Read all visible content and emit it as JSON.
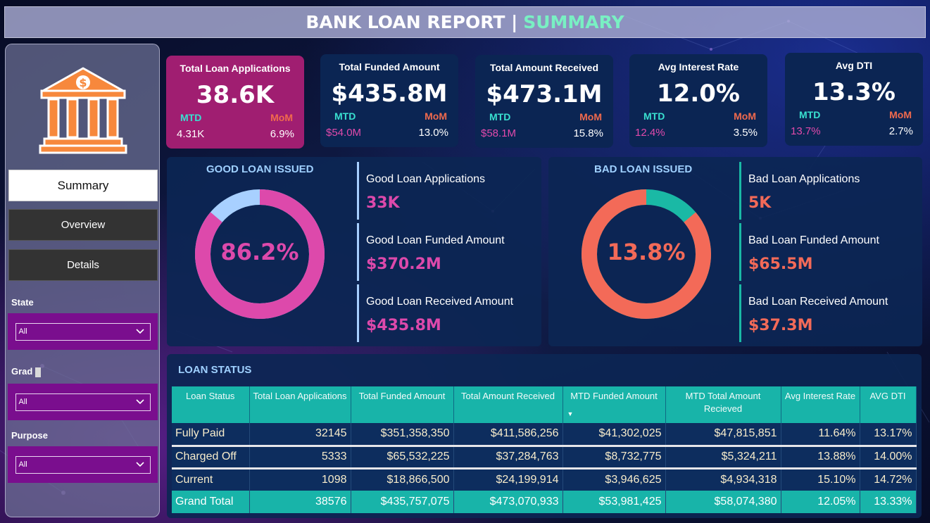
{
  "header": {
    "title_main": "BANK LOAN REPORT |",
    "title_accent": "SUMMARY"
  },
  "sidebar": {
    "icon": "bank-dollar-icon",
    "nav": [
      {
        "label": "Summary",
        "active": true
      },
      {
        "label": "Overview",
        "active": false
      },
      {
        "label": "Details",
        "active": false
      }
    ],
    "filters": [
      {
        "label": "State",
        "value": "All"
      },
      {
        "label": "Grad",
        "value": "All"
      },
      {
        "label": "Purpose",
        "value": "All"
      }
    ]
  },
  "kpis": [
    {
      "title": "Total Loan Applications",
      "value": "38.6K",
      "mtd_label": "MTD",
      "mom_label": "MoM",
      "mtd": "4.31K",
      "mom": "6.9%"
    },
    {
      "title": "Total Funded Amount",
      "value": "$435.8M",
      "mtd_label": "MTD",
      "mom_label": "MoM",
      "mtd": "$54.0M",
      "mom": "13.0%"
    },
    {
      "title": "Total Amount Received",
      "value": "$473.1M",
      "mtd_label": "MTD",
      "mom_label": "MoM",
      "mtd": "$58.1M",
      "mom": "15.8%"
    },
    {
      "title": "Avg Interest Rate",
      "value": "12.0%",
      "mtd_label": "MTD",
      "mom_label": "MoM",
      "mtd": "12.4%",
      "mom": "3.5%"
    },
    {
      "title": "Avg DTI",
      "value": "13.3%",
      "mtd_label": "MTD",
      "mom_label": "MoM",
      "mtd": "13.7%",
      "mom": "2.7%"
    }
  ],
  "good_loan": {
    "title": "GOOD LOAN ISSUED",
    "percent_label": "86.2%",
    "percent": 86.2,
    "metrics": [
      {
        "label": "Good Loan Applications",
        "value": "33K"
      },
      {
        "label": "Good Loan Funded Amount",
        "value": "$370.2M"
      },
      {
        "label": "Good Loan Received Amount",
        "value": "$435.8M"
      }
    ]
  },
  "bad_loan": {
    "title": "BAD LOAN ISSUED",
    "percent_label": "13.8%",
    "percent": 13.8,
    "metrics": [
      {
        "label": "Bad Loan Applications",
        "value": "5K"
      },
      {
        "label": "Bad Loan Funded Amount",
        "value": "$65.5M"
      },
      {
        "label": "Bad Loan Received Amount",
        "value": "$37.3M"
      }
    ]
  },
  "loan_status": {
    "title": "LOAN STATUS",
    "columns": [
      "Loan Status",
      "Total Loan Applications",
      "Total Funded Amount",
      "Total Amount Received",
      "MTD Funded Amount",
      "MTD Total Amount Recieved",
      "Avg Interest Rate",
      "AVG DTI"
    ],
    "rows": [
      [
        "Fully Paid",
        "32145",
        "$351,358,350",
        "$411,586,256",
        "$41,302,025",
        "$47,815,851",
        "11.64%",
        "13.17%"
      ],
      [
        "Charged Off",
        "5333",
        "$65,532,225",
        "$37,284,763",
        "$8,732,775",
        "$5,324,211",
        "13.88%",
        "14.00%"
      ],
      [
        "Current",
        "1098",
        "$18,866,500",
        "$24,199,914",
        "$3,946,625",
        "$4,934,318",
        "15.10%",
        "14.72%"
      ]
    ],
    "total": [
      "Grand Total",
      "38576",
      "$435,757,075",
      "$473,070,933",
      "$53,981,425",
      "$58,074,380",
      "12.05%",
      "13.33%"
    ]
  },
  "colors": {
    "good_primary": "#dd49ab",
    "good_secondary": "#a8d0ff",
    "bad_primary": "#f36a58",
    "bad_secondary": "#1ab9a5",
    "kpi_first_bg": "#a01e71",
    "table_accent": "#18b4a9"
  }
}
